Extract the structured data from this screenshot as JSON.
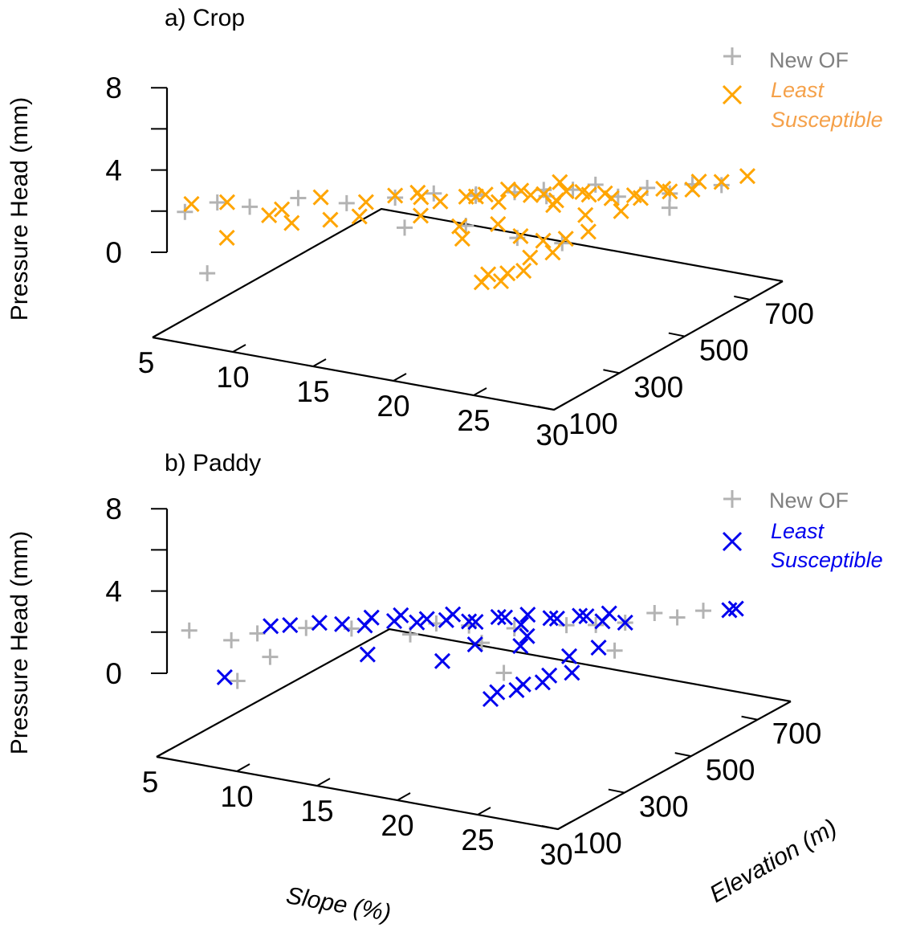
{
  "chart_data": [
    {
      "type": "scatter",
      "title": "a) Crop",
      "xlabel": "Slope (%)",
      "ylabel": "Elevation (m)",
      "zlabel": "Pressure Head (mm)",
      "xlim": [
        5,
        30
      ],
      "ylim": [
        100,
        800
      ],
      "zlim": [
        -8,
        8
      ],
      "x_ticks": [
        "5",
        "10",
        "15",
        "20",
        "25",
        "30"
      ],
      "y_ticks": [
        "100",
        "300",
        "500",
        "700"
      ],
      "z_ticks": [
        "0",
        "4",
        "8"
      ],
      "grid": false,
      "legend_position": "top-right",
      "colors": {
        "new_of": "#b3b3b3",
        "least": "#ffa500"
      },
      "series": [
        {
          "name": "New OF",
          "marker": "plus",
          "points": [
            [
              6,
              150,
              3.2
            ],
            [
              7,
              200,
              3.5
            ],
            [
              8,
              250,
              2.5
            ],
            [
              8,
              120,
              -1.5
            ],
            [
              10,
              300,
              3.0
            ],
            [
              12,
              350,
              2.2
            ],
            [
              14,
              400,
              2.4
            ],
            [
              15,
              380,
              0.2
            ],
            [
              16,
              420,
              3.0
            ],
            [
              17,
              500,
              1.8
            ],
            [
              18,
              450,
              2.8
            ],
            [
              19,
              520,
              2.2
            ],
            [
              20,
              560,
              2.0
            ],
            [
              21,
              600,
              1.6
            ],
            [
              22,
              620,
              2.0
            ],
            [
              23,
              640,
              0.8
            ],
            [
              24,
              680,
              1.2
            ],
            [
              24,
              420,
              0.5
            ],
            [
              25,
              700,
              0.6
            ],
            [
              26,
              720,
              1.4
            ],
            [
              26,
              650,
              0.4
            ],
            [
              22,
              470,
              3.5
            ],
            [
              21,
              430,
              0.0
            ],
            [
              18,
              420,
              0.5
            ],
            [
              27,
              760,
              0.9
            ]
          ]
        },
        {
          "name": "Least Susceptible",
          "marker": "x",
          "points": [
            [
              6,
              170,
              3.6
            ],
            [
              7,
              230,
              3.0
            ],
            [
              8,
              180,
              0.8
            ],
            [
              9,
              260,
              1.8
            ],
            [
              10,
              280,
              1.0
            ],
            [
              11,
              320,
              3.0
            ],
            [
              12,
              300,
              1.5
            ],
            [
              13,
              360,
              2.4
            ],
            [
              14,
              400,
              2.6
            ],
            [
              15,
              430,
              2.2
            ],
            [
              16,
              440,
              1.9
            ],
            [
              17,
              470,
              2.1
            ],
            [
              17,
              500,
              1.6
            ],
            [
              18,
              480,
              2.4
            ],
            [
              18,
              520,
              1.0
            ],
            [
              19,
              540,
              2.0
            ],
            [
              19,
              500,
              2.8
            ],
            [
              20,
              560,
              1.6
            ],
            [
              20,
              520,
              2.2
            ],
            [
              21,
              580,
              1.8
            ],
            [
              21,
              540,
              1.2
            ],
            [
              21,
              560,
              3.0
            ],
            [
              22,
              600,
              1.4
            ],
            [
              22,
              580,
              2.0
            ],
            [
              22,
              500,
              2.6
            ],
            [
              23,
              620,
              1.0
            ],
            [
              23,
              600,
              1.8
            ],
            [
              23,
              540,
              0.8
            ],
            [
              24,
              640,
              1.2
            ],
            [
              24,
              660,
              0.6
            ],
            [
              24,
              600,
              0.4
            ],
            [
              25,
              700,
              0.8
            ],
            [
              25,
              680,
              1.4
            ],
            [
              26,
              720,
              0.9
            ],
            [
              26,
              740,
              1.3
            ],
            [
              27,
              760,
              1.2
            ],
            [
              28,
              790,
              1.5
            ],
            [
              20,
              420,
              1.2
            ],
            [
              21,
              440,
              0.0
            ],
            [
              22,
              460,
              -0.5
            ],
            [
              22,
              420,
              -1.4
            ],
            [
              22,
              400,
              -2.3
            ],
            [
              21,
              400,
              -2.8
            ],
            [
              21,
              380,
              -3.2
            ],
            [
              20,
              370,
              -3.4
            ],
            [
              20,
              390,
              -3.0
            ],
            [
              23,
              440,
              -1.0
            ],
            [
              23,
              480,
              -0.4
            ],
            [
              24,
              500,
              0.2
            ],
            [
              19,
              360,
              0.6
            ],
            [
              18,
              400,
              0.8
            ],
            [
              16,
              380,
              1.6
            ],
            [
              15,
              420,
              2.8
            ],
            [
              13,
              340,
              1.4
            ],
            [
              10,
              250,
              2.8
            ]
          ]
        }
      ]
    },
    {
      "type": "scatter",
      "title": "b) Paddy",
      "xlabel": "Slope (%)",
      "ylabel": "Elevation (m)",
      "zlabel": "Pressure Head (mm)",
      "xlim": [
        5,
        30
      ],
      "ylim": [
        100,
        800
      ],
      "zlim": [
        -8,
        8
      ],
      "x_ticks": [
        "5",
        "10",
        "15",
        "20",
        "25",
        "30"
      ],
      "y_ticks": [
        "100",
        "300",
        "500",
        "700"
      ],
      "z_ticks": [
        "0",
        "4",
        "8"
      ],
      "grid": false,
      "legend_position": "top-right",
      "colors": {
        "new_of": "#b3b3b3",
        "least": "#0000ee"
      },
      "series": [
        {
          "name": "New OF",
          "marker": "plus",
          "points": [
            [
              6,
              150,
              3.5
            ],
            [
              8,
              180,
              2.6
            ],
            [
              9,
              210,
              3.0
            ],
            [
              10,
              200,
              1.2
            ],
            [
              11,
              260,
              3.2
            ],
            [
              13,
              300,
              3.0
            ],
            [
              15,
              380,
              1.6
            ],
            [
              16,
              410,
              2.4
            ],
            [
              17,
              460,
              1.6
            ],
            [
              18,
              450,
              0.4
            ],
            [
              19,
              500,
              1.2
            ],
            [
              21,
              560,
              1.0
            ],
            [
              22,
              600,
              0.6
            ],
            [
              23,
              640,
              0.4
            ],
            [
              24,
              680,
              0.9
            ],
            [
              25,
              700,
              0.4
            ],
            [
              26,
              730,
              0.8
            ],
            [
              20,
              420,
              -1.4
            ],
            [
              9,
              150,
              -0.5
            ],
            [
              24,
              560,
              -0.6
            ]
          ]
        },
        {
          "name": "Least Susceptible",
          "marker": "x",
          "points": [
            [
              8,
              160,
              -0.6
            ],
            [
              9,
              250,
              3.0
            ],
            [
              10,
              260,
              3.2
            ],
            [
              11,
              300,
              3.0
            ],
            [
              12,
              320,
              2.8
            ],
            [
              13,
              340,
              2.6
            ],
            [
              13,
              360,
              3.0
            ],
            [
              14,
              380,
              2.6
            ],
            [
              14,
              400,
              2.8
            ],
            [
              15,
              400,
              2.4
            ],
            [
              15,
              430,
              2.2
            ],
            [
              16,
              440,
              2.2
            ],
            [
              16,
              460,
              2.4
            ],
            [
              17,
              460,
              2.0
            ],
            [
              17,
              480,
              1.6
            ],
            [
              18,
              500,
              2.0
            ],
            [
              18,
              520,
              1.6
            ],
            [
              19,
              540,
              1.8
            ],
            [
              19,
              520,
              1.2
            ],
            [
              20,
              560,
              1.4
            ],
            [
              20,
              580,
              1.0
            ],
            [
              21,
              600,
              1.2
            ],
            [
              21,
              620,
              0.8
            ],
            [
              22,
              620,
              0.6
            ],
            [
              22,
              640,
              1.0
            ],
            [
              23,
              640,
              0.4
            ],
            [
              14,
              300,
              0.8
            ],
            [
              17,
              380,
              -0.4
            ],
            [
              18,
              430,
              0.6
            ],
            [
              20,
              470,
              0.3
            ],
            [
              20,
              490,
              0.9
            ],
            [
              22,
              520,
              -1.0
            ],
            [
              23,
              560,
              -0.6
            ],
            [
              20,
              380,
              -3.2
            ],
            [
              20,
              400,
              -2.9
            ],
            [
              21,
              410,
              -2.6
            ],
            [
              21,
              430,
              -2.4
            ],
            [
              22,
              440,
              -2.1
            ],
            [
              22,
              460,
              -1.8
            ],
            [
              23,
              480,
              -1.6
            ],
            [
              27,
              760,
              0.6
            ],
            [
              27,
              780,
              0.4
            ]
          ]
        }
      ]
    }
  ]
}
